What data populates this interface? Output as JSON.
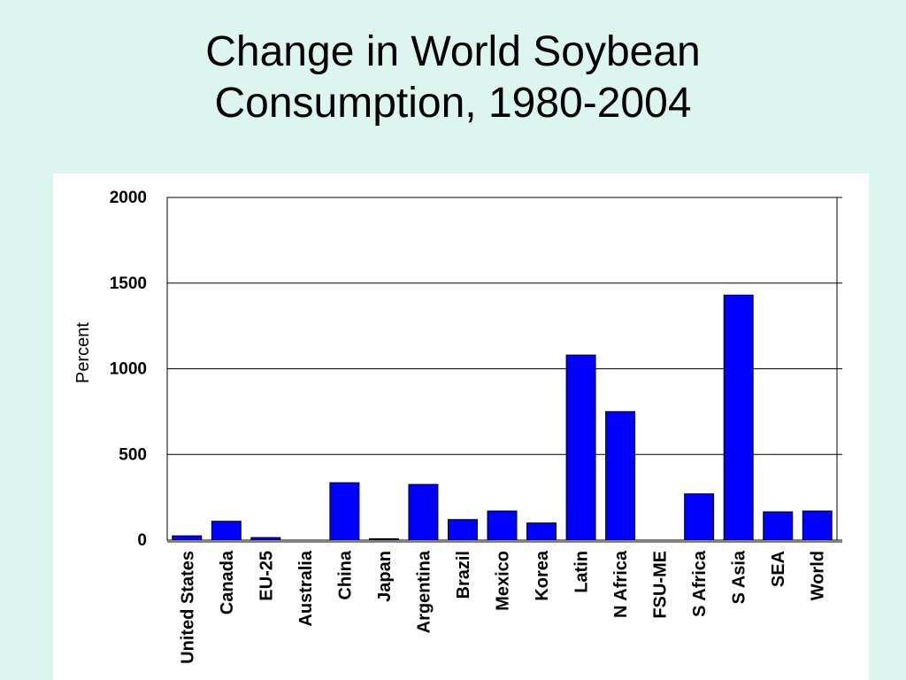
{
  "title": {
    "line1": "Change in World Soybean",
    "line2": "Consumption, 1980-2004"
  },
  "chart_data": {
    "type": "bar",
    "ylabel": "Percent",
    "xlabel": "",
    "ylim": [
      0,
      2000
    ],
    "yticks": [
      0,
      500,
      1000,
      1500,
      2000
    ],
    "grid": true,
    "bar_color": "#0000ff",
    "categories": [
      "United States",
      "Canada",
      "EU-25",
      "Australia",
      "China",
      "Japan",
      "Argentina",
      "Brazil",
      "Mexico",
      "Korea",
      "Latin",
      "N Africa",
      "FSU-ME",
      "S Africa",
      "S Asia",
      "SEA",
      "World"
    ],
    "values": [
      25,
      110,
      15,
      0,
      335,
      8,
      325,
      120,
      170,
      100,
      1080,
      750,
      0,
      270,
      1430,
      165,
      170
    ]
  }
}
